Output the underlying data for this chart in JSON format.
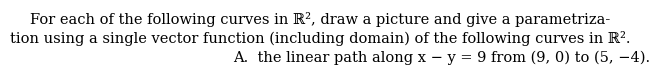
{
  "line1": "For each of the following curves in ℝ², draw a picture and give a parametriza-",
  "line2": "tion using a single vector function (including domain) of the following curves in ℝ².",
  "line3": "A.  the linear path along x − y = 9 from (9, 0) to (5, −4).",
  "background_color": "#ffffff",
  "text_color": "#000000",
  "font_size": 10.5
}
